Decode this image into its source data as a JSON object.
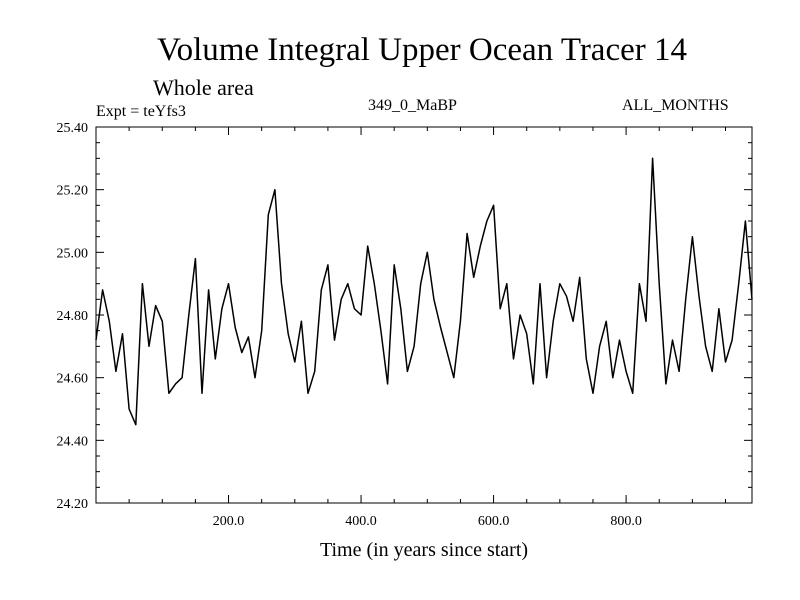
{
  "header": {
    "title": "Volume Integral Upper Ocean Tracer 14",
    "subtitle": "Whole area",
    "expt": "Expt = teYfs3",
    "center_label": "349_0_MaBP",
    "right_label": "ALL_MONTHS"
  },
  "chart_data": {
    "type": "line",
    "title": "Volume Integral Upper Ocean Tracer 14",
    "subtitle": "Whole area",
    "xlabel": "Time (in years since start)",
    "ylabel": "",
    "xlim": [
      0,
      990
    ],
    "ylim": [
      24.2,
      25.4
    ],
    "x_ticks": [
      200,
      400,
      600,
      800
    ],
    "x_tick_labels": [
      "200.0",
      "400.0",
      "600.0",
      "800.0"
    ],
    "y_ticks": [
      24.2,
      24.4,
      24.6,
      24.8,
      25.0,
      25.2,
      25.4
    ],
    "y_tick_labels": [
      "24.20",
      "24.40",
      "24.60",
      "24.80",
      "25.00",
      "25.20",
      "25.40"
    ],
    "grid": false,
    "line_color": "#000000",
    "series": [
      {
        "name": "Tracer 14",
        "x": [
          0,
          10,
          20,
          30,
          40,
          50,
          60,
          70,
          80,
          90,
          100,
          110,
          120,
          130,
          140,
          150,
          160,
          170,
          180,
          190,
          200,
          210,
          220,
          230,
          240,
          250,
          260,
          270,
          280,
          290,
          300,
          310,
          320,
          330,
          340,
          350,
          360,
          370,
          380,
          390,
          400,
          410,
          420,
          430,
          440,
          450,
          460,
          470,
          480,
          490,
          500,
          510,
          520,
          530,
          540,
          550,
          560,
          570,
          580,
          590,
          600,
          610,
          620,
          630,
          640,
          650,
          660,
          670,
          680,
          690,
          700,
          710,
          720,
          730,
          740,
          750,
          760,
          770,
          780,
          790,
          800,
          810,
          820,
          830,
          840,
          850,
          860,
          870,
          880,
          890,
          900,
          910,
          920,
          930,
          940,
          950,
          960,
          970,
          980,
          990
        ],
        "values": [
          24.72,
          24.88,
          24.78,
          24.62,
          24.74,
          24.5,
          24.45,
          24.9,
          24.7,
          24.83,
          24.78,
          24.55,
          24.58,
          24.6,
          24.8,
          24.98,
          24.55,
          24.88,
          24.66,
          24.82,
          24.9,
          24.76,
          24.68,
          24.73,
          24.6,
          24.75,
          25.12,
          25.2,
          24.9,
          24.74,
          24.65,
          24.78,
          24.55,
          24.62,
          24.88,
          24.96,
          24.72,
          24.85,
          24.9,
          24.82,
          24.8,
          25.02,
          24.9,
          24.75,
          24.58,
          24.96,
          24.82,
          24.62,
          24.7,
          24.9,
          25.0,
          24.85,
          24.76,
          24.68,
          24.6,
          24.78,
          25.06,
          24.92,
          25.02,
          25.1,
          25.15,
          24.82,
          24.9,
          24.66,
          24.8,
          24.74,
          24.58,
          24.9,
          24.6,
          24.78,
          24.9,
          24.86,
          24.78,
          24.92,
          24.66,
          24.55,
          24.7,
          24.78,
          24.6,
          24.72,
          24.62,
          24.55,
          24.9,
          24.78,
          25.3,
          24.9,
          24.58,
          24.72,
          24.62,
          24.85,
          25.05,
          24.86,
          24.7,
          24.62,
          24.82,
          24.65,
          24.72,
          24.9,
          25.1,
          24.85
        ]
      }
    ]
  }
}
